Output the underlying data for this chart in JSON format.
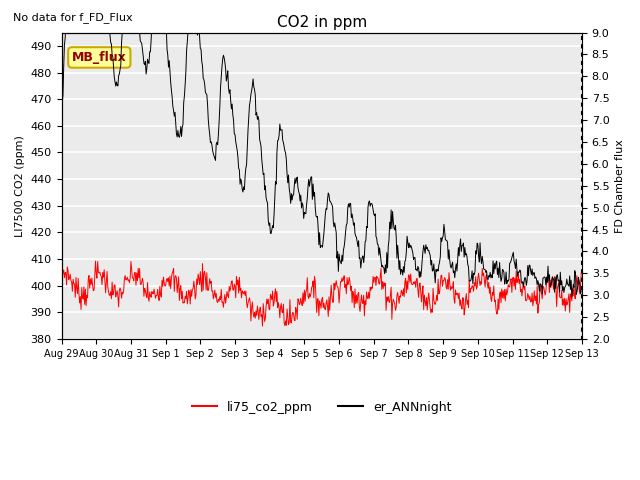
{
  "title": "CO2 in ppm",
  "note": "No data for f_FD_Flux",
  "ylabel_left": "LI7500 CO2 (ppm)",
  "ylabel_right": "FD Chamber flux",
  "ylim_left": [
    380,
    495
  ],
  "ylim_right": [
    2.0,
    9.0
  ],
  "yticks_left": [
    380,
    390,
    400,
    410,
    420,
    430,
    440,
    450,
    460,
    470,
    480,
    490
  ],
  "yticks_right": [
    2.0,
    2.5,
    3.0,
    3.5,
    4.0,
    4.5,
    5.0,
    5.5,
    6.0,
    6.5,
    7.0,
    7.5,
    8.0,
    8.5,
    9.0
  ],
  "xtick_labels": [
    "Aug 29",
    "Aug 30",
    "Aug 31",
    "Sep 1",
    "Sep 2",
    "Sep 3",
    "Sep 4",
    "Sep 5",
    "Sep 6",
    "Sep 7",
    "Sep 8",
    "Sep 9",
    "Sep 10",
    "Sep 11",
    "Sep 12",
    "Sep 13"
  ],
  "line1_color": "#ff0000",
  "line2_color": "#000000",
  "line1_label": "li75_co2_ppm",
  "line2_label": "er_ANNnight",
  "legend_label": "MB_flux",
  "plot_bg_color": "#ebebeb",
  "legend_box_color": "#ffff99",
  "legend_box_edge": "#ccaa00"
}
